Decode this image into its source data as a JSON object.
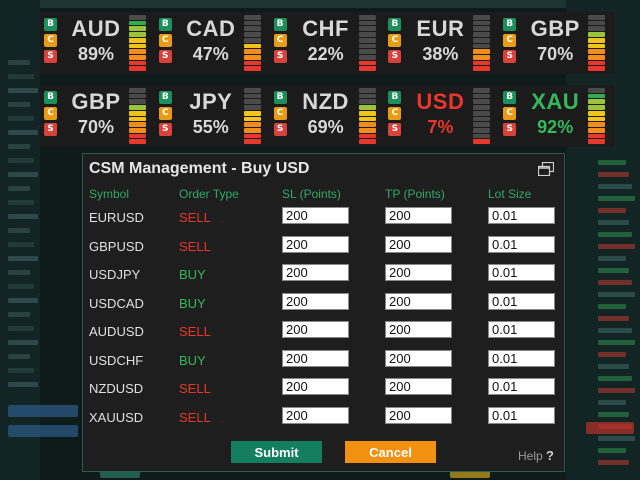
{
  "strength_row_1": [
    {
      "currency": "AUD",
      "percent": "89%",
      "strength": 0.89,
      "color": "#d8d8d8"
    },
    {
      "currency": "CAD",
      "percent": "47%",
      "strength": 0.47,
      "color": "#d8d8d8"
    },
    {
      "currency": "CHF",
      "percent": "22%",
      "strength": 0.22,
      "color": "#d8d8d8"
    },
    {
      "currency": "EUR",
      "percent": "38%",
      "strength": 0.38,
      "color": "#d8d8d8"
    },
    {
      "currency": "GBP",
      "percent": "70%",
      "strength": 0.7,
      "color": "#d8d8d8"
    }
  ],
  "strength_row_2": [
    {
      "currency": "GBP",
      "percent": "70%",
      "strength": 0.7,
      "color": "#d8d8d8"
    },
    {
      "currency": "JPY",
      "percent": "55%",
      "strength": 0.55,
      "color": "#d8d8d8"
    },
    {
      "currency": "NZD",
      "percent": "69%",
      "strength": 0.69,
      "color": "#d8d8d8"
    },
    {
      "currency": "USD",
      "percent": "7%",
      "strength": 0.07,
      "color": "#e8372c"
    },
    {
      "currency": "XAU",
      "percent": "92%",
      "strength": 0.92,
      "color": "#35b75c"
    }
  ],
  "tile_buttons": {
    "buy": "B",
    "close": "C",
    "sell": "S"
  },
  "dialog": {
    "title": "CSM Management - Buy USD",
    "restore_icon": "window-restore-icon",
    "columns": {
      "symbol": "Symbol",
      "order_type": "Order Type",
      "sl": "SL (Points)",
      "tp": "TP (Points)",
      "lot": "Lot Size"
    },
    "rows": [
      {
        "symbol": "EURUSD",
        "order_type": "SELL",
        "sl": "200",
        "tp": "200",
        "lot": "0.01"
      },
      {
        "symbol": "GBPUSD",
        "order_type": "SELL",
        "sl": "200",
        "tp": "200",
        "lot": "0.01"
      },
      {
        "symbol": "USDJPY",
        "order_type": "BUY",
        "sl": "200",
        "tp": "200",
        "lot": "0.01"
      },
      {
        "symbol": "USDCAD",
        "order_type": "BUY",
        "sl": "200",
        "tp": "200",
        "lot": "0.01"
      },
      {
        "symbol": "AUDUSD",
        "order_type": "SELL",
        "sl": "200",
        "tp": "200",
        "lot": "0.01"
      },
      {
        "symbol": "USDCHF",
        "order_type": "BUY",
        "sl": "200",
        "tp": "200",
        "lot": "0.01"
      },
      {
        "symbol": "NZDUSD",
        "order_type": "SELL",
        "sl": "200",
        "tp": "200",
        "lot": "0.01"
      },
      {
        "symbol": "XAUUSD",
        "order_type": "SELL",
        "sl": "200",
        "tp": "200",
        "lot": "0.01"
      }
    ],
    "submit_label": "Submit",
    "cancel_label": "Cancel",
    "help_label": "Help",
    "help_mark": "?"
  },
  "colors": {
    "buy": "#35b75c",
    "sell": "#e8372c",
    "header_green": "#2fa86b",
    "submit_bg": "#147f5e",
    "cancel_bg": "#f29111"
  }
}
